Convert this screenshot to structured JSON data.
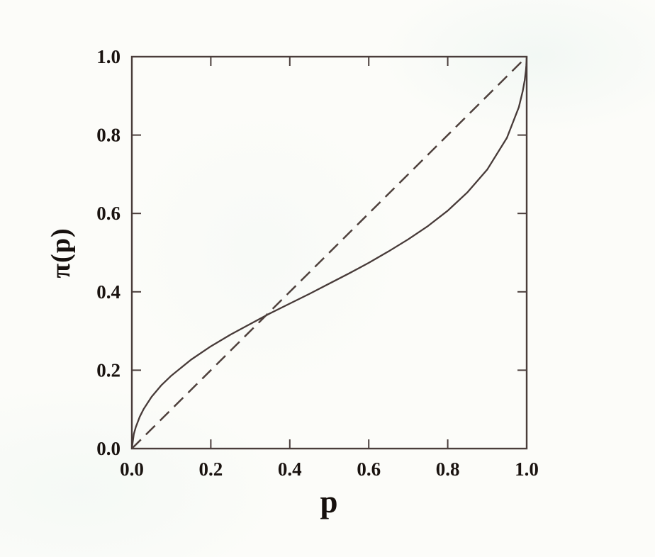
{
  "figure": {
    "background": "#fcfcf9",
    "axis_color": "#4a3d3b",
    "text_color": "#1a1310"
  },
  "chart_data": {
    "type": "line",
    "title": "",
    "xlabel": "p",
    "ylabel": "π(p)",
    "xlim": [
      0,
      1
    ],
    "ylim": [
      0,
      1
    ],
    "grid": false,
    "legend": "none",
    "tick_style": "inward ticks on all four sides",
    "tick_positions": [
      0,
      0.2,
      0.4,
      0.6,
      0.8,
      1
    ],
    "x_tick_labels": [
      "0.0",
      "0.2",
      "0.4",
      "0.6",
      "0.8",
      "1.0"
    ],
    "y_tick_labels": [
      "0.0",
      "0.2",
      "0.4",
      "0.6",
      "0.8",
      "1.0"
    ],
    "annotations": {
      "crossing_point": [
        0.33,
        0.33
      ],
      "shape": "inverse-S probability weighting curve: overweights small p, underweights large p"
    },
    "series": [
      {
        "name": "probability weighting function π(p)",
        "line_style": "solid",
        "color": "#473a38",
        "x": [
          0,
          0.005,
          0.01,
          0.02,
          0.03,
          0.05,
          0.075,
          0.1,
          0.15,
          0.2,
          0.25,
          0.3,
          0.35,
          0.4,
          0.45,
          0.5,
          0.55,
          0.6,
          0.65,
          0.7,
          0.75,
          0.8,
          0.85,
          0.9,
          0.95,
          0.98,
          0.99,
          0.995,
          0.998,
          0.999,
          1
        ],
        "y": [
          0,
          0.037,
          0.055,
          0.081,
          0.101,
          0.132,
          0.162,
          0.186,
          0.227,
          0.261,
          0.291,
          0.318,
          0.345,
          0.37,
          0.395,
          0.421,
          0.447,
          0.474,
          0.503,
          0.534,
          0.568,
          0.607,
          0.654,
          0.712,
          0.793,
          0.871,
          0.912,
          0.94,
          0.965,
          0.977,
          1
        ]
      },
      {
        "name": "identity reference line π(p) = p",
        "line_style": "dashed",
        "color": "#4e403c",
        "x": [
          0,
          1
        ],
        "y": [
          0,
          1
        ]
      }
    ]
  }
}
